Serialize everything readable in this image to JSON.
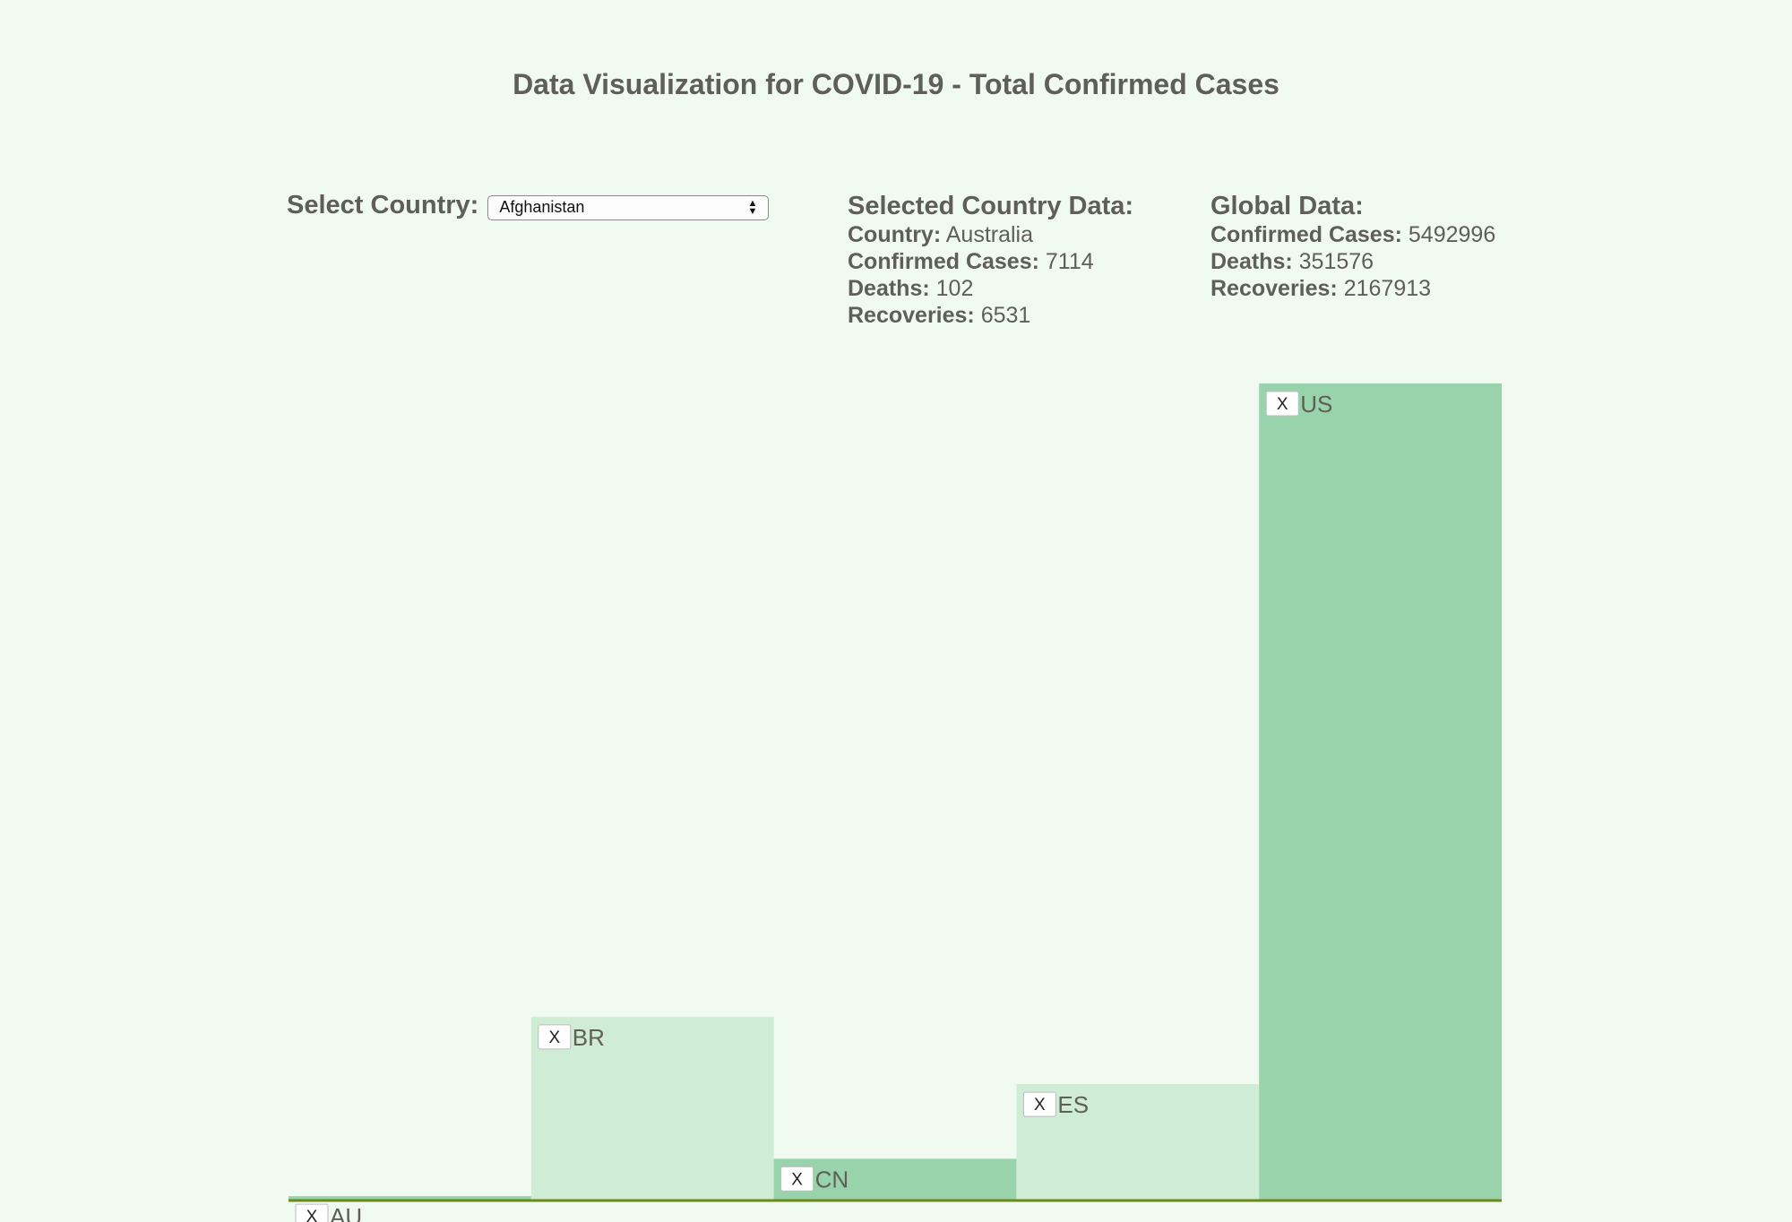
{
  "page": {
    "title": "Data Visualization for COVID-19 - Total Confirmed Cases"
  },
  "country_select": {
    "label": "Select Country:",
    "selected": "Afghanistan"
  },
  "selected_country": {
    "heading": "Selected Country Data:",
    "country_label": "Country:",
    "country_value": "Australia",
    "confirmed_label": "Confirmed Cases:",
    "confirmed_value": "7114",
    "deaths_label": "Deaths:",
    "deaths_value": "102",
    "recoveries_label": "Recoveries:",
    "recoveries_value": "6531"
  },
  "global": {
    "heading": "Global Data:",
    "confirmed_label": "Confirmed Cases:",
    "confirmed_value": "5492996",
    "deaths_label": "Deaths:",
    "deaths_value": "351576",
    "recoveries_label": "Recoveries:",
    "recoveries_value": "2167913"
  },
  "remove_button_label": "X",
  "colors": {
    "bar_dark": "#98d3ac",
    "bar_light": "#ceedd4",
    "axis": "#6b8a1a",
    "background": "#f0faf0"
  },
  "chart_data": {
    "type": "bar",
    "categories": [
      "AU",
      "BR",
      "CN",
      "ES",
      "US"
    ],
    "values": [
      7114,
      376669,
      84102,
      237906,
      1681418
    ],
    "ylim": [
      0,
      1681418
    ],
    "grid": false,
    "xlabel": "",
    "ylabel": ""
  }
}
